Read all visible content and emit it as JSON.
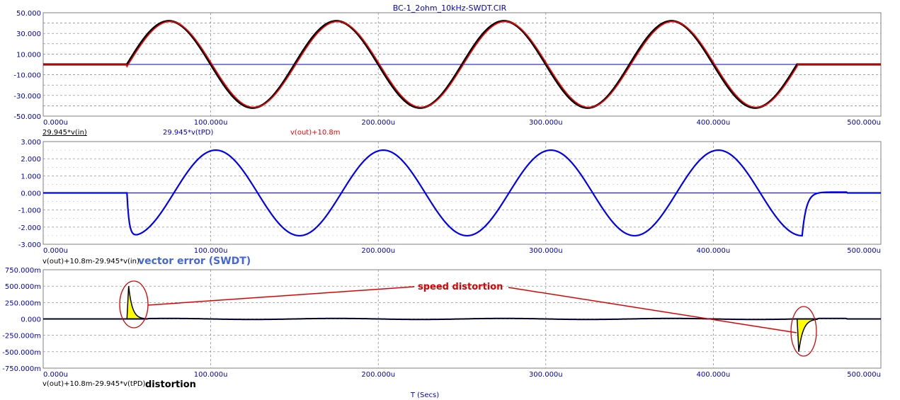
{
  "chart_data": [
    {
      "type": "line",
      "title": "BC-1_2ohm_10kHz-SWDT.CIR",
      "xlim": [
        0,
        500
      ],
      "ylim": [
        -50,
        50
      ],
      "x_ticks": [
        "0.000u",
        "100.000u",
        "200.000u",
        "300.000u",
        "400.000u",
        "500.000u"
      ],
      "y_ticks": [
        "50.000",
        "30.000",
        "10.000",
        "-10.000",
        "-30.000",
        "-50.000"
      ],
      "legend_labels": [
        "29.945*v(in)",
        "29.945*v(tPD)",
        "v(out)+10.8m"
      ],
      "series": [
        {
          "name": "29.945*v(in)",
          "color": "#000000",
          "description_points": {
            "x": [
              0,
              50,
              75,
              125,
              175,
              225,
              275,
              325,
              375,
              425,
              450,
              500
            ],
            "y": [
              0,
              0,
              42,
              -42,
              42,
              -42,
              42,
              -42,
              42,
              -42,
              0,
              0
            ]
          }
        },
        {
          "name": "29.945*v(tPD)",
          "color": "#0000cc",
          "x": [
            0,
            500
          ],
          "y": [
            0,
            0
          ]
        },
        {
          "name": "v(out)+10.8m",
          "color": "#ff0000",
          "x": [
            0,
            50,
            75,
            125,
            175,
            225,
            275,
            325,
            375,
            425,
            450,
            500
          ],
          "y": [
            0,
            0,
            42,
            -42,
            42,
            -42,
            42,
            -42,
            42,
            -42,
            0,
            0
          ]
        }
      ]
    },
    {
      "type": "line",
      "xlim": [
        0,
        500
      ],
      "ylim": [
        -3,
        3
      ],
      "x_ticks": [
        "0.000u",
        "100.000u",
        "200.000u",
        "300.000u",
        "400.000u",
        "500.000u"
      ],
      "y_ticks": [
        "3.000",
        "2.000",
        "1.000",
        "0.000",
        "-1.000",
        "-2.000",
        "-3.000"
      ],
      "legend_labels": [
        "v(out)+10.8m-29.945*v(in)"
      ],
      "series": [
        {
          "name": "v(out)+10.8m-29.945*v(in)",
          "color": "#0000ff",
          "x": [
            0,
            50,
            52,
            55,
            103,
            153,
            203,
            253,
            303,
            353,
            403,
            452,
            455,
            458,
            470,
            500
          ],
          "y": [
            0,
            0,
            -1.8,
            -2.3,
            2.5,
            -2.5,
            2.5,
            -2.5,
            2.5,
            -2.5,
            2.5,
            -2.5,
            -0.6,
            0,
            0.05,
            0
          ]
        },
        {
          "name": "zero",
          "color": "#0000ff",
          "x": [
            0,
            500
          ],
          "y": [
            0,
            0
          ]
        }
      ]
    },
    {
      "type": "line",
      "xlim": [
        0,
        500
      ],
      "ylim": [
        -750,
        750
      ],
      "x_ticks": [
        "0.000u",
        "100.000u",
        "200.000u",
        "300.000u",
        "400.000u",
        "500.000u"
      ],
      "y_ticks": [
        "750.000m",
        "500.000m",
        "250.000m",
        "0.000",
        "-250.000m",
        "-500.000m",
        "-750.000m"
      ],
      "xlabel": "T (Secs)",
      "legend_labels": [
        "v(out)+10.8m-29.945*v(tPD)"
      ],
      "series": [
        {
          "name": "v(out)+10.8m-29.945*v(tPD)",
          "color": "#000000",
          "x": [
            0,
            50,
            51,
            53,
            56,
            60,
            100,
            450,
            451,
            453,
            456,
            460,
            500
          ],
          "y": [
            0,
            0,
            500,
            250,
            60,
            0,
            0,
            0,
            -500,
            -200,
            -40,
            0,
            0
          ]
        }
      ]
    }
  ],
  "annotations": {
    "vector_error": "vector error (SWDT)",
    "speed_distortion": "speed distortion",
    "distortion": "distortion"
  },
  "colors": {
    "axis_text": "#0000cc",
    "grid": "#808080",
    "annotation_red": "#e00000",
    "fill_yellow": "#ffff00"
  }
}
